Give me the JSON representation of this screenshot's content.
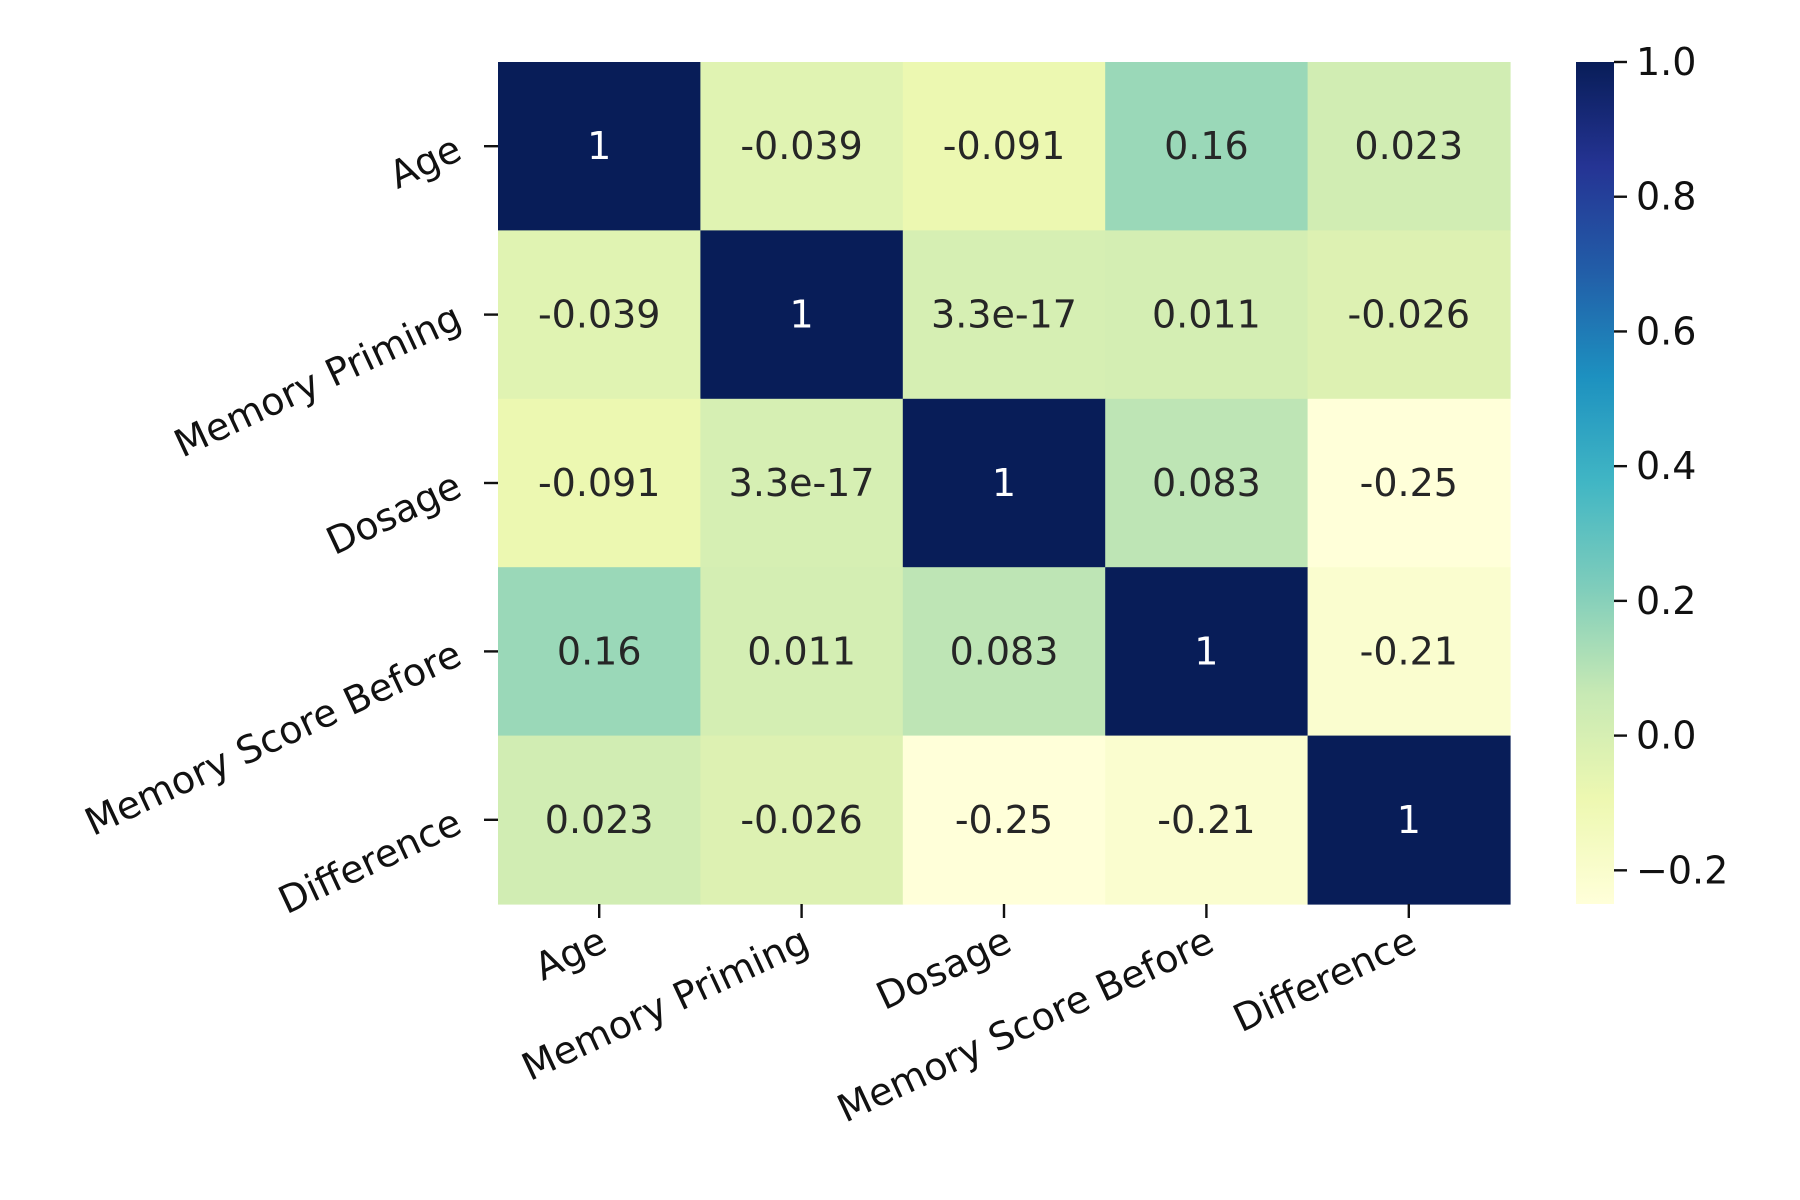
{
  "chart_data": {
    "type": "heatmap",
    "title": "",
    "xlabel": "",
    "ylabel": "",
    "x_labels": [
      "Age",
      "Memory Priming",
      "Dosage",
      "Memory Score Before",
      "Difference"
    ],
    "y_labels": [
      "Age",
      "Memory Priming",
      "Dosage",
      "Memory Score Before",
      "Difference"
    ],
    "values": [
      [
        1,
        -0.039,
        -0.091,
        0.16,
        0.023
      ],
      [
        -0.039,
        1,
        3.3e-17,
        0.011,
        -0.026
      ],
      [
        -0.091,
        3.3e-17,
        1,
        0.083,
        -0.25
      ],
      [
        0.16,
        0.011,
        0.083,
        1,
        -0.21
      ],
      [
        0.023,
        -0.026,
        -0.25,
        -0.21,
        1
      ]
    ],
    "annotations": [
      [
        "1",
        "-0.039",
        "-0.091",
        "0.16",
        "0.023"
      ],
      [
        "-0.039",
        "1",
        "3.3e-17",
        "0.011",
        "-0.026"
      ],
      [
        "-0.091",
        "3.3e-17",
        "1",
        "0.083",
        "-0.25"
      ],
      [
        "0.16",
        "0.011",
        "0.083",
        "1",
        "-0.21"
      ],
      [
        "0.023",
        "-0.026",
        "-0.25",
        "-0.21",
        "1"
      ]
    ],
    "colorbar": {
      "colormap": "YlGnBu",
      "vmin": -0.25,
      "vmax": 1.0,
      "ticks": [
        1.0,
        0.8,
        0.6,
        0.4,
        0.2,
        0.0,
        -0.2
      ],
      "tick_labels": [
        "1.0",
        "0.8",
        "0.6",
        "0.4",
        "0.2",
        "0.0",
        "−0.2"
      ]
    },
    "colormap_stops": [
      "#ffffd9",
      "#edf8b1",
      "#c7e9b4",
      "#7fcdbb",
      "#41b6c4",
      "#1d91c0",
      "#225ea8",
      "#253494",
      "#081d58"
    ]
  }
}
